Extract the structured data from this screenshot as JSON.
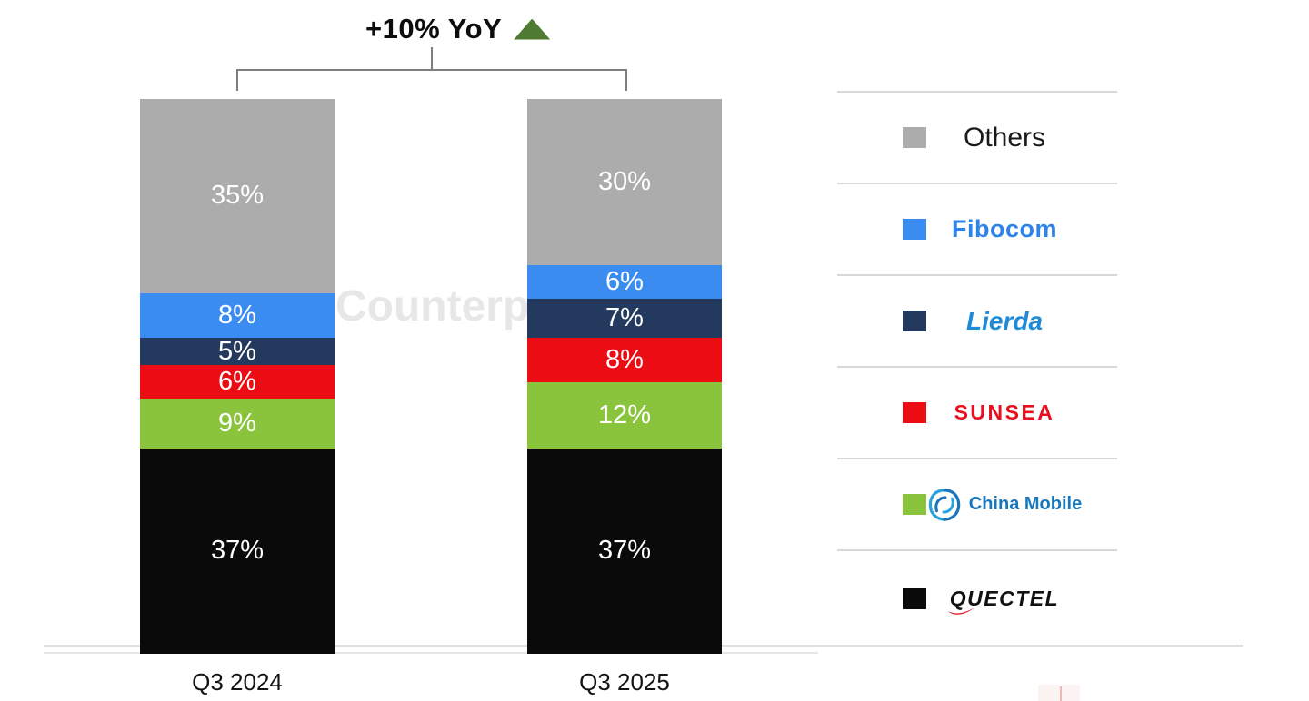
{
  "annotation": {
    "text": "+10% YoY",
    "arrow_color": "#4E7B31"
  },
  "watermark_text": "Counterp",
  "chart_data": {
    "type": "bar",
    "stacked": true,
    "unit": "%",
    "title": "+10% YoY",
    "categories": [
      "Q3 2024",
      "Q3 2025"
    ],
    "series": [
      {
        "name": "Others",
        "values": [
          35,
          30
        ],
        "color": "#ACACAC"
      },
      {
        "name": "Fibocom",
        "values": [
          8,
          6
        ],
        "color": "#3A8CF0"
      },
      {
        "name": "Lierda",
        "values": [
          5,
          7
        ],
        "color": "#24395E"
      },
      {
        "name": "Sunsea",
        "values": [
          6,
          8
        ],
        "color": "#EC0C13"
      },
      {
        "name": "China Mobile",
        "values": [
          9,
          12
        ],
        "color": "#8AC43C"
      },
      {
        "name": "Quectel",
        "values": [
          37,
          37
        ],
        "color": "#0A0A0A"
      }
    ],
    "stack_order": "top-to-bottom",
    "value_label_format": "{value}%",
    "value_label_color": "#FFFFFF",
    "axis_range": [
      0,
      100
    ],
    "grid": false,
    "legend_position": "right"
  },
  "legend": {
    "items": [
      {
        "label": "Others",
        "color": "#ACACAC"
      },
      {
        "label": "Fibocom",
        "color": "#3A8CF0"
      },
      {
        "label": "Lierda",
        "color": "#24395E"
      },
      {
        "label": "SUNSEA",
        "color": "#EC0C13"
      },
      {
        "label": "China Mobile",
        "color": "#8AC43C"
      },
      {
        "label": "QUECTEL",
        "color": "#0A0A0A"
      }
    ]
  }
}
